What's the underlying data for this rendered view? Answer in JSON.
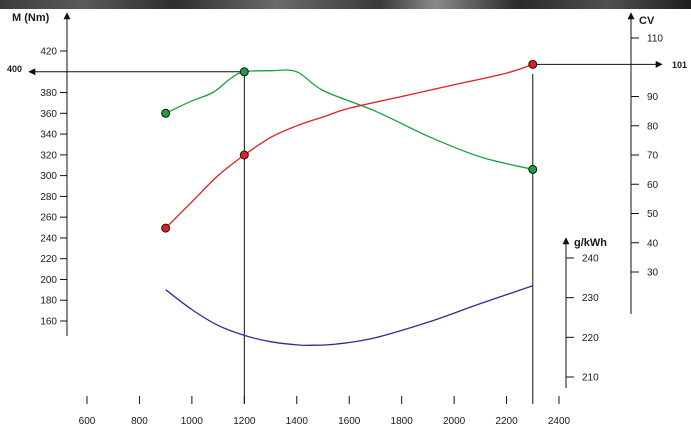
{
  "chart_data": {
    "type": "line",
    "x_axis": {
      "ticks": [
        600,
        800,
        1000,
        1200,
        1400,
        1600,
        1800,
        2000,
        2200,
        2400
      ],
      "tick_labels": [
        "600",
        "800",
        "1000",
        "1200",
        "1400",
        "1600",
        "1800",
        "2000",
        "2200",
        "2400"
      ],
      "range": [
        560,
        2430
      ]
    },
    "torque_axis": {
      "label": "M (Nm)",
      "ticks": [
        160,
        180,
        200,
        220,
        240,
        260,
        280,
        300,
        320,
        340,
        360,
        380,
        420
      ],
      "tick_labels": [
        "160",
        "180",
        "200",
        "220",
        "240",
        "260",
        "280",
        "300",
        "320",
        "340",
        "360",
        "380",
        "420"
      ],
      "range": [
        150,
        440
      ]
    },
    "power_axis": {
      "label": "CV",
      "ticks": [
        30,
        40,
        50,
        60,
        70,
        80,
        90,
        110
      ],
      "tick_labels": [
        "30",
        "40",
        "50",
        "60",
        "70",
        "80",
        "90",
        "110"
      ],
      "range": [
        20,
        116
      ]
    },
    "consumption_axis": {
      "label": "g/kWh",
      "ticks": [
        210,
        220,
        230,
        240
      ],
      "tick_labels": [
        "210",
        "220",
        "230",
        "240"
      ],
      "range": [
        205,
        244
      ]
    },
    "series": [
      {
        "color": "#1aa040",
        "axis": "torque_axis",
        "x": [
          900,
          1000,
          1080,
          1150,
          1200,
          1300,
          1400,
          1500,
          1700,
          1900,
          2100,
          2300
        ],
        "y": [
          360,
          372,
          380,
          394,
          400,
          401,
          400,
          382,
          362,
          338,
          318,
          306
        ],
        "markers": [
          [
            900,
            360
          ],
          [
            1200,
            400
          ],
          [
            2300,
            306
          ]
        ]
      },
      {
        "color": "#e02020",
        "axis": "power_axis",
        "x": [
          900,
          1000,
          1100,
          1200,
          1300,
          1400,
          1500,
          1600,
          1800,
          2000,
          2200,
          2300
        ],
        "y": [
          45,
          54,
          63,
          70,
          76,
          80,
          83,
          86,
          90,
          94,
          98,
          101
        ],
        "markers": [
          [
            900,
            45
          ],
          [
            1200,
            70
          ],
          [
            2300,
            101
          ]
        ]
      },
      {
        "color": "#2b2f8e",
        "axis": "consumption_axis",
        "x": [
          900,
          1000,
          1100,
          1200,
          1300,
          1400,
          1450,
          1550,
          1700,
          1900,
          2100,
          2300
        ],
        "y": [
          232,
          227,
          223,
          220.5,
          218.9,
          218.1,
          218,
          218.3,
          219.9,
          223.8,
          228.5,
          233
        ]
      }
    ],
    "annotations": [
      {
        "text": "400",
        "axis": "torque_axis",
        "value": 400,
        "x": 1200,
        "side": "left"
      },
      {
        "text": "101",
        "axis": "power_axis",
        "value": 101,
        "x": 2300,
        "side": "right"
      }
    ],
    "reference_lines_x": [
      1200,
      2300
    ],
    "grid": false,
    "legend": "none"
  }
}
